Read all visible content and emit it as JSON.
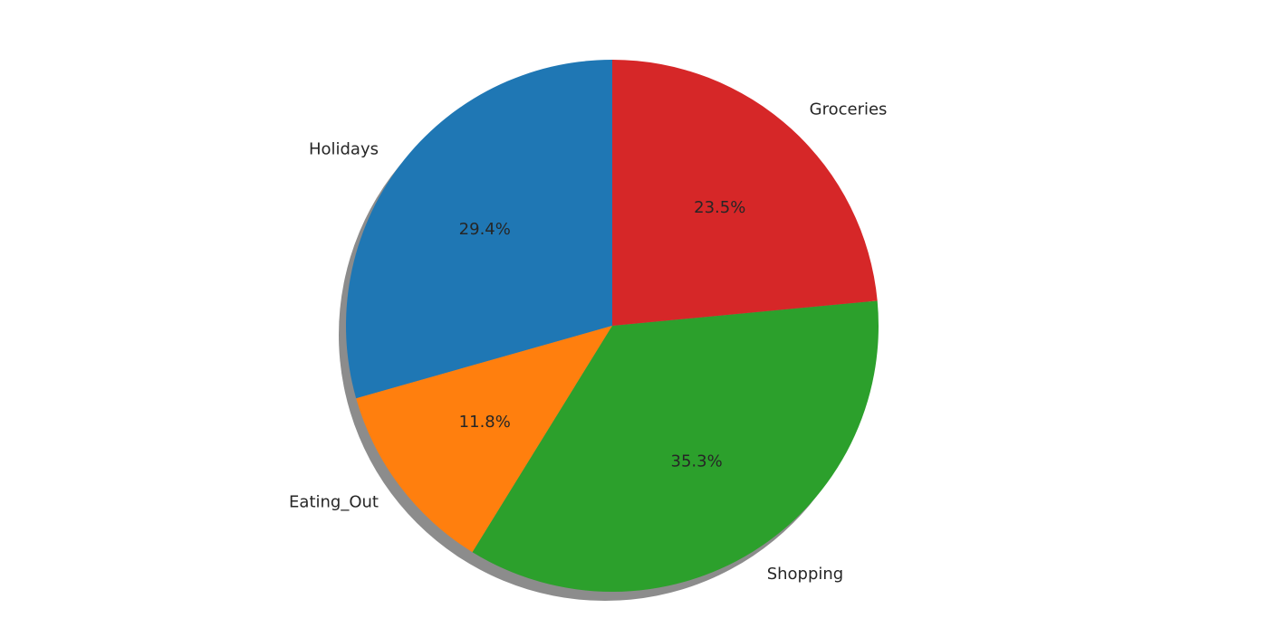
{
  "chart_data": {
    "type": "pie",
    "shadow": true,
    "start_angle_deg": 90,
    "direction": "counterclockwise",
    "slices": [
      {
        "label": "Holidays",
        "value": 29.4,
        "pct_text": "29.4%",
        "color": "#1f77b4"
      },
      {
        "label": "Eating_Out",
        "value": 11.8,
        "pct_text": "11.8%",
        "color": "#ff7f0e"
      },
      {
        "label": "Shopping",
        "value": 35.3,
        "pct_text": "35.3%",
        "color": "#2ca02c"
      },
      {
        "label": "Groceries",
        "value": 23.5,
        "pct_text": "23.5%",
        "color": "#d62728"
      }
    ]
  }
}
